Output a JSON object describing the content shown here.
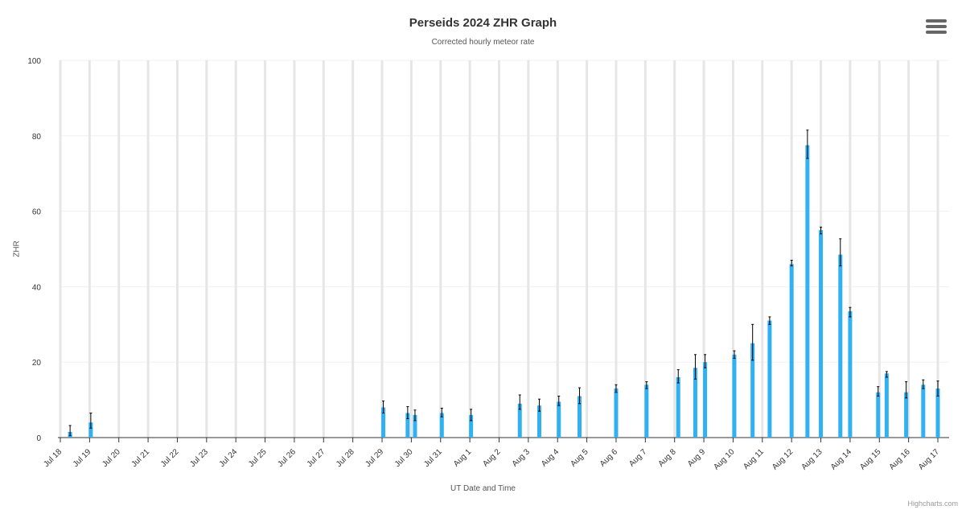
{
  "title": "Perseids 2024 ZHR Graph",
  "subtitle": "Corrected hourly meteor rate",
  "credits": "Highcharts.com",
  "menu": {
    "icon": "hamburger-menu-icon"
  },
  "colors": {
    "bar": "#2fb1f2",
    "errorbar": "#000000",
    "grid": "#e6e6e6",
    "axis": "#333333",
    "text": "#333333"
  },
  "chart_data": {
    "type": "bar",
    "title": "Perseids 2024 ZHR Graph",
    "subtitle": "Corrected hourly meteor rate",
    "xlabel": "UT Date and Time",
    "ylabel": "ZHR",
    "ylim": [
      0,
      100
    ],
    "yticks": [
      0,
      20,
      40,
      60,
      80,
      100
    ],
    "xlim": [
      "2024-07-18T00:00",
      "2024-08-17T00:00"
    ],
    "xticks": [
      "Jul 18",
      "Jul 19",
      "Jul 20",
      "Jul 21",
      "Jul 22",
      "Jul 23",
      "Jul 24",
      "Jul 25",
      "Jul 26",
      "Jul 27",
      "Jul 28",
      "Jul 29",
      "Jul 30",
      "Jul 31",
      "Aug 1",
      "Aug 2",
      "Aug 3",
      "Aug 4",
      "Aug 5",
      "Aug 6",
      "Aug 7",
      "Aug 8",
      "Aug 9",
      "Aug 10",
      "Aug 11",
      "Aug 12",
      "Aug 13",
      "Aug 14",
      "Aug 15",
      "Aug 16",
      "Aug 17"
    ],
    "grid": true,
    "series": [
      {
        "type": "column",
        "points": [
          [
            "2024-07-18T08:00",
            1.5
          ],
          [
            "2024-07-19T01:00",
            4
          ],
          [
            "2024-07-29T01:00",
            8
          ],
          [
            "2024-07-29T21:00",
            6.5
          ],
          [
            "2024-07-30T03:00",
            6
          ],
          [
            "2024-07-31T01:00",
            6.5
          ],
          [
            "2024-08-01T01:00",
            6
          ],
          [
            "2024-08-02T17:00",
            9
          ],
          [
            "2024-08-03T09:00",
            8.5
          ],
          [
            "2024-08-04T01:00",
            9.5
          ],
          [
            "2024-08-04T18:00",
            11
          ],
          [
            "2024-08-06T00:00",
            13
          ],
          [
            "2024-08-07T01:00",
            14
          ],
          [
            "2024-08-08T03:00",
            16
          ],
          [
            "2024-08-08T17:00",
            18.5
          ],
          [
            "2024-08-09T01:00",
            20
          ],
          [
            "2024-08-10T01:00",
            22
          ],
          [
            "2024-08-10T16:00",
            25
          ],
          [
            "2024-08-11T06:00",
            31
          ],
          [
            "2024-08-12T00:00",
            46
          ],
          [
            "2024-08-12T13:00",
            77.5
          ],
          [
            "2024-08-13T00:00",
            55
          ],
          [
            "2024-08-13T16:00",
            48.5
          ],
          [
            "2024-08-14T00:00",
            33.5
          ],
          [
            "2024-08-14T23:00",
            12
          ],
          [
            "2024-08-15T06:00",
            17
          ],
          [
            "2024-08-15T22:00",
            12
          ],
          [
            "2024-08-16T12:00",
            14
          ],
          [
            "2024-08-17T00:00",
            13
          ]
        ]
      },
      {
        "type": "errorbar",
        "ranges": [
          [
            0.5,
            3.2
          ],
          [
            2.5,
            6.5
          ],
          [
            6.5,
            9.7
          ],
          [
            5,
            8.2
          ],
          [
            4.5,
            7.3
          ],
          [
            5.5,
            7.8
          ],
          [
            4.5,
            7.5
          ],
          [
            7.5,
            11.3
          ],
          [
            7,
            10.2
          ],
          [
            8.5,
            11
          ],
          [
            9,
            13.2
          ],
          [
            12,
            14
          ],
          [
            13,
            14.8
          ],
          [
            14.5,
            18
          ],
          [
            15.5,
            22
          ],
          [
            18.5,
            22
          ],
          [
            21,
            23
          ],
          [
            20.5,
            30
          ],
          [
            30,
            32
          ],
          [
            45.5,
            47
          ],
          [
            74,
            81.5
          ],
          [
            54,
            55.8
          ],
          [
            45.5,
            52.7
          ],
          [
            32,
            34.5
          ],
          [
            11,
            13.5
          ],
          [
            16,
            17.5
          ],
          [
            10.5,
            14.8
          ],
          [
            13,
            15.3
          ],
          [
            11,
            15
          ]
        ]
      }
    ]
  }
}
